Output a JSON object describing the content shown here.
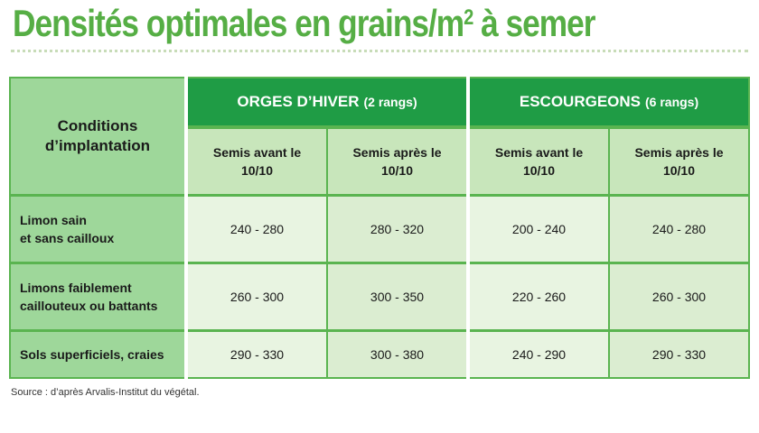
{
  "title": {
    "text": "Densités optimales en grains/m",
    "sup": "2",
    "suffix": " à semer"
  },
  "table": {
    "corner_header": [
      "Conditions",
      "d’implantation"
    ],
    "groups": [
      {
        "name": "ORGES D’HIVER",
        "detail": "(2 rangs)"
      },
      {
        "name": "ESCOURGEONS",
        "detail": "(6 rangs)"
      }
    ],
    "subheaders": [
      [
        "Semis avant le",
        "10/10"
      ],
      [
        "Semis après le",
        "10/10"
      ],
      [
        "Semis avant le",
        "10/10"
      ],
      [
        "Semis après le",
        "10/10"
      ]
    ],
    "rows": [
      {
        "label": [
          "Limon sain",
          "et sans cailloux"
        ],
        "values": [
          "240 - 280",
          "280 - 320",
          "200 - 240",
          "240 - 280"
        ]
      },
      {
        "label": [
          "Limons faiblement",
          "caillouteux ou battants"
        ],
        "values": [
          "260 - 300",
          "300 - 350",
          "220 - 260",
          "260 - 300"
        ]
      },
      {
        "label": [
          "Sols superficiels, craies"
        ],
        "values": [
          "290 - 330",
          "300 - 380",
          "240 - 290",
          "290 - 330"
        ]
      }
    ]
  },
  "source": "Source : d’après Arvalis-Institut du végétal."
}
